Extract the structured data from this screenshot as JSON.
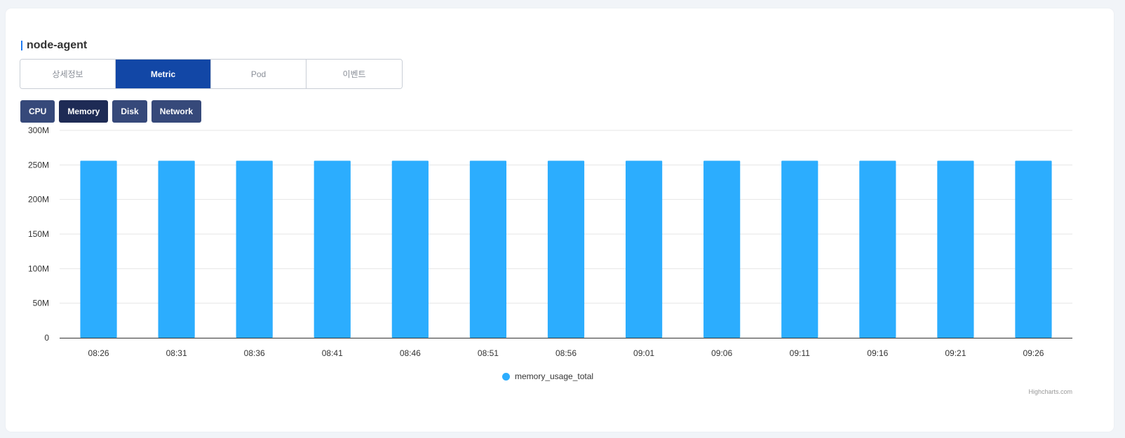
{
  "header": {
    "title": "node-agent"
  },
  "tabs": [
    {
      "label": "상세정보",
      "active": false
    },
    {
      "label": "Metric",
      "active": true
    },
    {
      "label": "Pod",
      "active": false
    },
    {
      "label": "이벤트",
      "active": false
    }
  ],
  "metric_tabs": [
    {
      "label": "CPU",
      "active": false
    },
    {
      "label": "Memory",
      "active": true
    },
    {
      "label": "Disk",
      "active": false
    },
    {
      "label": "Network",
      "active": false
    }
  ],
  "colors": {
    "accent": "#1e7bf2",
    "active_tab": "#1247a6",
    "subtab": "#36497a",
    "subtab_active": "#1e2b55",
    "bar": "#2cadfe"
  },
  "chart_data": {
    "type": "bar",
    "categories": [
      "08:26",
      "08:31",
      "08:36",
      "08:41",
      "08:46",
      "08:51",
      "08:56",
      "09:01",
      "09:06",
      "09:11",
      "09:16",
      "09:21",
      "09:26"
    ],
    "series": [
      {
        "name": "memory_usage_total",
        "values": [
          256,
          256,
          256,
          256,
          256,
          256,
          256,
          256,
          256,
          256,
          256,
          256,
          256
        ]
      }
    ],
    "value_unit": "M",
    "ylim": [
      0,
      300
    ],
    "yticks": [
      "0",
      "50M",
      "100M",
      "150M",
      "200M",
      "250M",
      "300M"
    ],
    "grid": true,
    "legend": "bottom-center",
    "credits": "Highcharts.com"
  }
}
